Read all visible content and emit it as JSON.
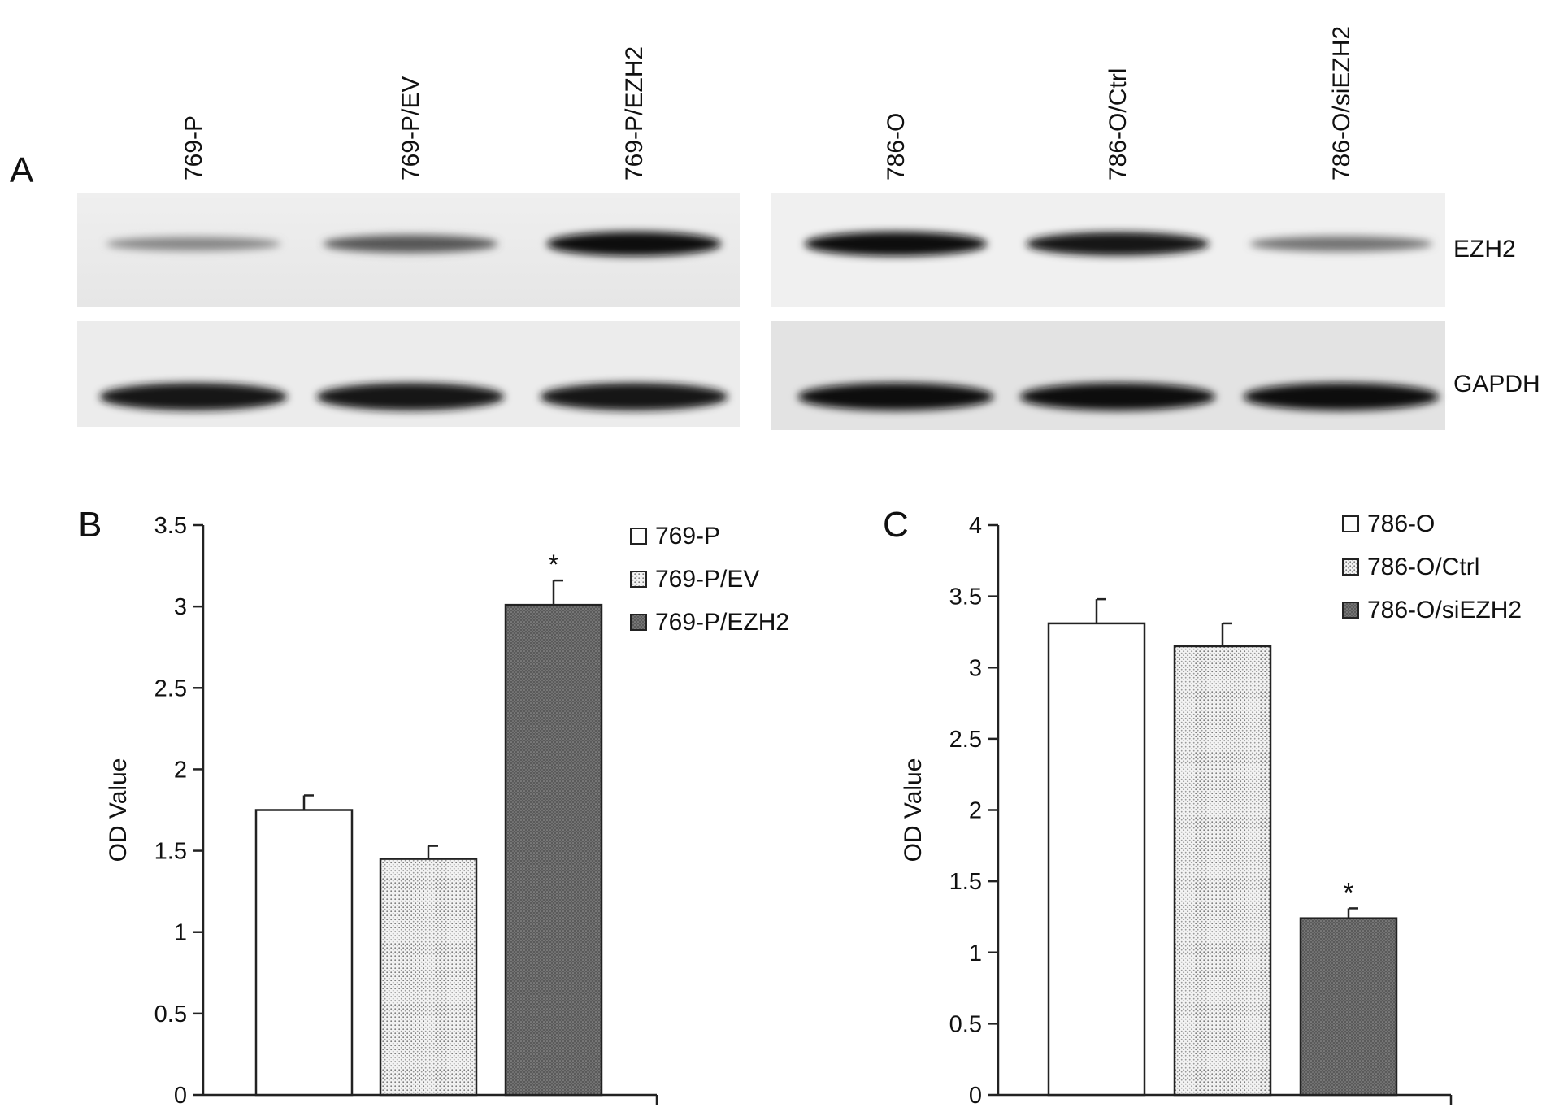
{
  "figure": {
    "panel_labels": [
      "A",
      "B",
      "C"
    ]
  },
  "blot": {
    "left_group": {
      "lanes": [
        "769-P",
        "769-P/EV",
        "769-P/EZH2"
      ],
      "ezh2_intensity": [
        0.35,
        0.6,
        1.0
      ],
      "gapdh_intensity": [
        0.95,
        0.95,
        0.95
      ]
    },
    "right_group": {
      "lanes": [
        "786-O",
        "786-O/Ctrl",
        "786-O/siEZH2"
      ],
      "ezh2_intensity": [
        1.0,
        0.95,
        0.45
      ],
      "gapdh_intensity": [
        1.0,
        1.0,
        1.0
      ]
    },
    "band_labels": [
      "EZH2",
      "GAPDH"
    ]
  },
  "colors": {
    "bar_white": "#ffffff",
    "bar_dotted": "#f1f1f1",
    "bar_dark": "#6e6e6e",
    "axis": "#222222"
  },
  "chart_data": [
    {
      "type": "bar",
      "panel": "B",
      "categories": [
        "769-P",
        "769-P/EV",
        "769-P/EZH2"
      ],
      "values": [
        1.75,
        1.45,
        3.01
      ],
      "errors": [
        0.09,
        0.08,
        0.15
      ],
      "significance": [
        "",
        "",
        "*"
      ],
      "ylabel": "OD Value",
      "ylim": [
        0,
        3.5
      ],
      "yticks": [
        "0",
        "0.5",
        "1",
        "1.5",
        "2",
        "2.5",
        "3",
        "3.5"
      ],
      "legend": [
        "769-P",
        "769-P/EV",
        "769-P/EZH2"
      ],
      "legend_position": "top-right",
      "grid": false
    },
    {
      "type": "bar",
      "panel": "C",
      "categories": [
        "786-O",
        "786-O/Ctrl",
        "786-O/siEZH2"
      ],
      "values": [
        3.31,
        3.15,
        1.24
      ],
      "errors": [
        0.17,
        0.16,
        0.07
      ],
      "significance": [
        "",
        "",
        "*"
      ],
      "ylabel": "OD Value",
      "ylim": [
        0,
        4
      ],
      "yticks": [
        "0",
        "0.5",
        "1",
        "1.5",
        "2",
        "2.5",
        "3",
        "3.5",
        "4"
      ],
      "legend": [
        "786-O",
        "786-O/Ctrl",
        "786-O/siEZH2"
      ],
      "legend_position": "top-right",
      "grid": false
    }
  ]
}
